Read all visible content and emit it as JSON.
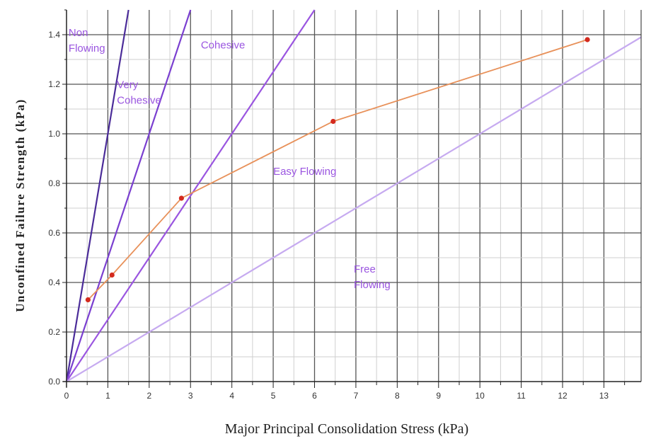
{
  "chart_data": {
    "type": "line",
    "title": "",
    "xlabel": "Major Principal Consolidation Stress (kPa)",
    "ylabel": "Unconfined Failure Strength (kPa)",
    "xlim": [
      0,
      13.9
    ],
    "ylim": [
      0,
      1.5
    ],
    "x_ticks": [
      "0",
      "1",
      "2",
      "3",
      "4",
      "5",
      "6",
      "7",
      "8",
      "9",
      "10",
      "11",
      "12",
      "13"
    ],
    "y_ticks": [
      "0.0",
      "0.2",
      "0.4",
      "0.6",
      "0.8",
      "1.0",
      "1.2",
      "1.4"
    ],
    "grid": true,
    "reference_lines": [
      {
        "slope": 1.0,
        "x_end": 1.5,
        "color": "#4b2c99"
      },
      {
        "slope": 0.5,
        "x_end": 3.0,
        "color": "#7a3fd0"
      },
      {
        "slope": 0.25,
        "x_end": 6.0,
        "color": "#9a55e0"
      },
      {
        "slope": 0.1,
        "x_end": 13.9,
        "color": "#c6aaf0"
      }
    ],
    "regions": [
      {
        "lines": [
          "Non",
          "Flowing"
        ],
        "x": 0.05,
        "y": 1.395,
        "color": "#9a55e0"
      },
      {
        "lines": [
          "Very",
          "Cohesive"
        ],
        "x": 1.22,
        "y": 1.185,
        "color": "#9a55e0"
      },
      {
        "lines": [
          "Cohesive"
        ],
        "x": 3.25,
        "y": 1.345,
        "color": "#9a55e0"
      },
      {
        "lines": [
          "Easy Flowing"
        ],
        "x": 5.0,
        "y": 0.835,
        "color": "#9a55e0"
      },
      {
        "lines": [
          "Free",
          "Flowing"
        ],
        "x": 6.95,
        "y": 0.44,
        "color": "#9a55e0"
      }
    ],
    "series": [
      {
        "x": [
          0.52,
          1.1,
          2.78,
          6.45,
          12.6
        ],
        "y": [
          0.33,
          0.43,
          0.74,
          1.05,
          1.38
        ],
        "line_color": "#e8915a",
        "marker_color": "#d42a1e"
      }
    ]
  }
}
